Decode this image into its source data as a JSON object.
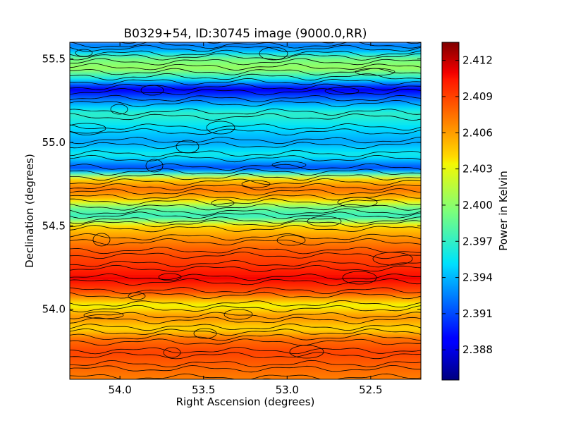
{
  "chart_data": {
    "type": "heatmap",
    "title": "B0329+54, ID:30745 image (9000.0,RR)",
    "xlabel": "Right Ascension (degrees)",
    "ylabel": "Declination (degrees)",
    "colorbar_label": "Power in Kelvin",
    "xlim": [
      54.3,
      52.2
    ],
    "ylim": [
      53.58,
      55.6
    ],
    "x_inverted": true,
    "xticks": [
      {
        "value": 54.0,
        "label": "54.0"
      },
      {
        "value": 53.5,
        "label": "53.5"
      },
      {
        "value": 53.0,
        "label": "53.0"
      },
      {
        "value": 52.5,
        "label": "52.5"
      }
    ],
    "yticks": [
      {
        "value": 54.0,
        "label": "54.0"
      },
      {
        "value": 54.5,
        "label": "54.5"
      },
      {
        "value": 55.0,
        "label": "55.0"
      },
      {
        "value": 55.5,
        "label": "55.5"
      }
    ],
    "colorbar_range": [
      2.3855,
      2.4135
    ],
    "colorbar_ticks": [
      {
        "value": 2.388,
        "label": "2.388"
      },
      {
        "value": 2.391,
        "label": "2.391"
      },
      {
        "value": 2.394,
        "label": "2.394"
      },
      {
        "value": 2.397,
        "label": "2.397"
      },
      {
        "value": 2.4,
        "label": "2.400"
      },
      {
        "value": 2.403,
        "label": "2.403"
      },
      {
        "value": 2.406,
        "label": "2.406"
      },
      {
        "value": 2.409,
        "label": "2.409"
      },
      {
        "value": 2.412,
        "label": "2.412"
      }
    ],
    "colormap": "jet",
    "contours": true,
    "grid": false,
    "dec_profile": [
      {
        "dec": 55.6,
        "value": 2.392
      },
      {
        "dec": 55.55,
        "value": 2.3935
      },
      {
        "dec": 55.5,
        "value": 2.399
      },
      {
        "dec": 55.44,
        "value": 2.4005
      },
      {
        "dec": 55.38,
        "value": 2.396
      },
      {
        "dec": 55.32,
        "value": 2.388
      },
      {
        "dec": 55.25,
        "value": 2.3925
      },
      {
        "dec": 55.17,
        "value": 2.397
      },
      {
        "dec": 55.08,
        "value": 2.395
      },
      {
        "dec": 55.0,
        "value": 2.3935
      },
      {
        "dec": 54.92,
        "value": 2.396
      },
      {
        "dec": 54.84,
        "value": 2.3905
      },
      {
        "dec": 54.78,
        "value": 2.404
      },
      {
        "dec": 54.72,
        "value": 2.4075
      },
      {
        "dec": 54.66,
        "value": 2.405
      },
      {
        "dec": 54.6,
        "value": 2.3985
      },
      {
        "dec": 54.55,
        "value": 2.397
      },
      {
        "dec": 54.5,
        "value": 2.404
      },
      {
        "dec": 54.42,
        "value": 2.4065
      },
      {
        "dec": 54.34,
        "value": 2.4085
      },
      {
        "dec": 54.26,
        "value": 2.4095
      },
      {
        "dec": 54.18,
        "value": 2.411
      },
      {
        "dec": 54.1,
        "value": 2.4085
      },
      {
        "dec": 54.02,
        "value": 2.403
      },
      {
        "dec": 53.95,
        "value": 2.4065
      },
      {
        "dec": 53.88,
        "value": 2.404
      },
      {
        "dec": 53.82,
        "value": 2.4075
      },
      {
        "dec": 53.74,
        "value": 2.409
      },
      {
        "dec": 53.66,
        "value": 2.408
      },
      {
        "dec": 53.58,
        "value": 2.407
      }
    ]
  }
}
